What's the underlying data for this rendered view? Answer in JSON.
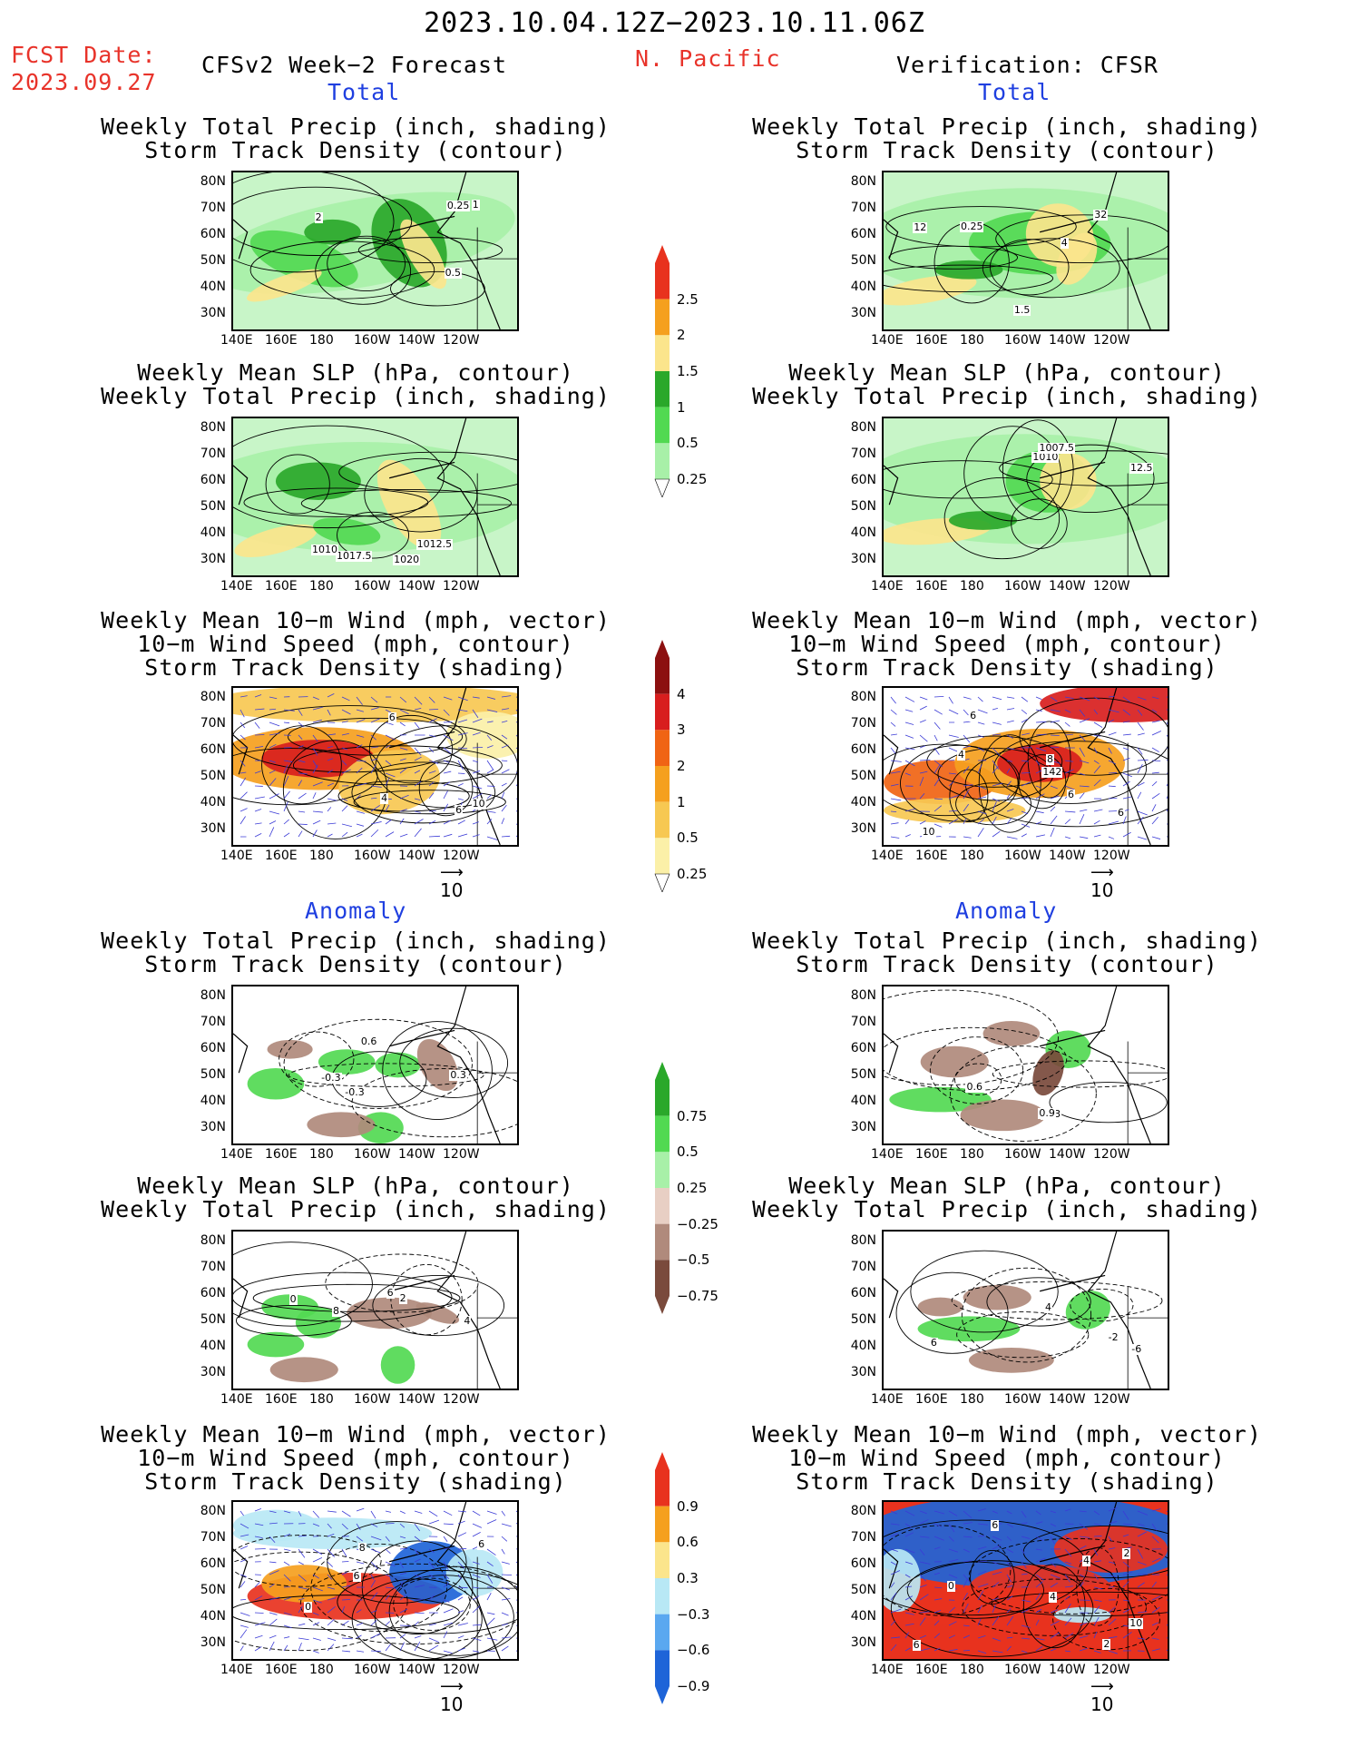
{
  "header": {
    "period": "2023.10.04.12Z−2023.10.11.06Z",
    "region": "N. Pacific",
    "fcst_label": "FCST Date:",
    "fcst_date": "2023.09.27",
    "left_title": "CFSv2 Week−2 Forecast",
    "right_title": "Verification: CFSR",
    "section_total": "Total",
    "section_anomaly": "Anomaly"
  },
  "panel_titles": {
    "precip_storm": [
      "Weekly Total Precip (inch, shading)",
      "Storm Track Density (contour)"
    ],
    "slp_precip": [
      "Weekly Mean SLP (hPa, contour)",
      "Weekly Total Precip (inch, shading)"
    ],
    "wind_storm": [
      "Weekly Mean 10−m Wind (mph, vector)",
      "10−m Wind Speed (mph, contour)",
      "Storm Track Density (shading)"
    ]
  },
  "axes": {
    "lat": [
      "80N",
      "70N",
      "60N",
      "50N",
      "40N",
      "30N"
    ],
    "lon": [
      "140E",
      "160E",
      "180",
      "160W",
      "140W",
      "120W"
    ]
  },
  "vector_ref": "10",
  "colorbars": {
    "precip_total": {
      "labels": [
        "2.5",
        "2",
        "1.5",
        "1",
        "0.5",
        "0.25"
      ],
      "colors": [
        "#e8321e",
        "#f5a01e",
        "#fbe58c",
        "#2aa82a",
        "#52d952",
        "#a8f0a8"
      ]
    },
    "storm_total": {
      "labels": [
        "4",
        "3",
        "2",
        "1",
        "0.5",
        "0.25"
      ],
      "colors": [
        "#8c1010",
        "#d81e1e",
        "#f06414",
        "#f5a01e",
        "#f7c852",
        "#fbf0a8"
      ]
    },
    "precip_anom": {
      "labels": [
        "0.75",
        "0.5",
        "0.25",
        "−0.25",
        "−0.5",
        "−0.75"
      ],
      "colors": [
        "#2aa82a",
        "#52d952",
        "#a8f0a8",
        "#e8cfc4",
        "#b08a7c",
        "#7a4a3c"
      ]
    },
    "storm_anom": {
      "labels": [
        "0.9",
        "0.6",
        "0.3",
        "−0.3",
        "−0.6",
        "−0.9"
      ],
      "colors": [
        "#e8321e",
        "#f5a01e",
        "#fbe58c",
        "#b8e8f5",
        "#5aa8f0",
        "#1e64d8"
      ]
    }
  },
  "contour_labels": {
    "f_total_precip": [
      "0.25",
      "2",
      "1",
      "0.5"
    ],
    "v_total_precip": [
      "12",
      "0.25",
      "4",
      "1.5",
      "32"
    ],
    "f_total_slp": [
      "1017.5",
      "1020",
      "1010",
      "1012.5"
    ],
    "v_total_slp": [
      "1010",
      "1007.5",
      "12.5"
    ],
    "f_total_wind": [
      "6",
      "10",
      "4",
      "6"
    ],
    "v_total_wind": [
      "10",
      "6",
      "6",
      "4",
      "6",
      "8",
      "142"
    ],
    "f_anom_precip": [
      "-0.3",
      "-0.3",
      "0.3",
      "0.6"
    ],
    "v_anom_precip": [
      "-0.3",
      "0.6",
      "0.9"
    ],
    "f_anom_slp": [
      "4",
      "2",
      "0",
      "8",
      "6"
    ],
    "v_anom_slp": [
      "6",
      "4",
      "-2",
      "-6"
    ],
    "f_anom_wind": [
      "6",
      "6",
      "8",
      "0"
    ],
    "v_anom_wind": [
      "4",
      "2",
      "0",
      "2",
      "6",
      "6",
      "10",
      "4"
    ]
  }
}
